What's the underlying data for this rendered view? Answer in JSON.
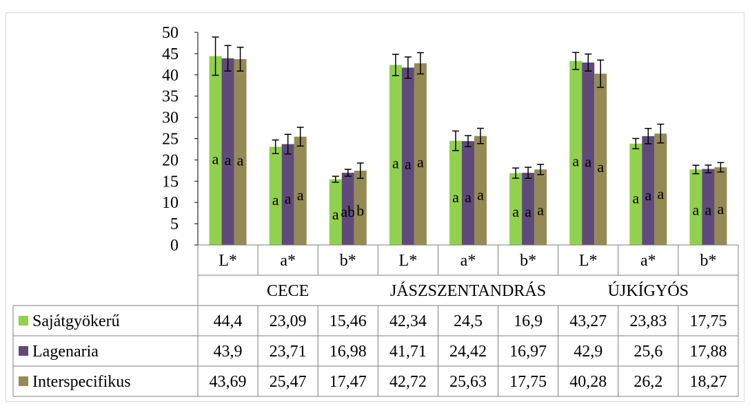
{
  "chart_data": {
    "type": "bar",
    "title": "",
    "xlabel": "",
    "ylabel": "",
    "ylim": [
      0,
      50
    ],
    "yticks": [
      "0",
      "5",
      "10",
      "15",
      "20",
      "25",
      "30",
      "35",
      "40",
      "45",
      "50"
    ],
    "grid": false,
    "legend": "data-table",
    "groups": [
      {
        "name": "CECE",
        "categories": [
          "L*",
          "a*",
          "b*"
        ]
      },
      {
        "name": "JÁSZSZENTANDRÁS",
        "categories": [
          "L*",
          "a*",
          "b*"
        ]
      },
      {
        "name": "ÚJKÍGYÓS",
        "categories": [
          "L*",
          "a*",
          "b*"
        ]
      }
    ],
    "categories": [
      "L*",
      "a*",
      "b*",
      "L*",
      "a*",
      "b*",
      "L*",
      "a*",
      "b*"
    ],
    "series": [
      {
        "name": "Sajátgyökerű",
        "color": "#92d050",
        "values": [
          44.4,
          23.09,
          15.46,
          42.34,
          24.5,
          16.9,
          43.27,
          23.83,
          17.75
        ],
        "labels": [
          "44,4",
          "23,09",
          "15,46",
          "42,34",
          "24,5",
          "16,9",
          "43,27",
          "23,83",
          "17,75"
        ],
        "error": [
          4.5,
          1.6,
          0.7,
          2.5,
          2.3,
          1.2,
          2.0,
          1.2,
          1.0
        ],
        "letters": [
          "a",
          "a",
          "a",
          "a",
          "a",
          "a",
          "a",
          "a",
          "a"
        ]
      },
      {
        "name": "Lagenaria",
        "color": "#604a7b",
        "values": [
          43.9,
          23.71,
          16.98,
          41.71,
          24.42,
          16.97,
          42.9,
          25.6,
          17.88
        ],
        "labels": [
          "43,9",
          "23,71",
          "16,98",
          "41,71",
          "24,42",
          "16,97",
          "42,9",
          "25,6",
          "17,88"
        ],
        "error": [
          3.0,
          2.3,
          0.8,
          2.5,
          1.3,
          1.3,
          2.0,
          1.8,
          0.9
        ],
        "letters": [
          "a",
          "a",
          "ab",
          "a",
          "a",
          "a",
          "a",
          "a",
          "a"
        ]
      },
      {
        "name": "Interspecifikus",
        "color": "#948a54",
        "values": [
          43.69,
          25.47,
          17.47,
          42.72,
          25.63,
          17.75,
          40.28,
          26.2,
          18.27
        ],
        "labels": [
          "43,69",
          "25,47",
          "17,47",
          "42,72",
          "25,63",
          "17,75",
          "40,28",
          "26,2",
          "18,27"
        ],
        "error": [
          2.8,
          2.2,
          1.8,
          2.5,
          1.8,
          1.2,
          3.2,
          2.2,
          1.1
        ],
        "letters": [
          "a",
          "a",
          "b",
          "a",
          "a",
          "a",
          "a",
          "a",
          "a"
        ]
      }
    ]
  }
}
